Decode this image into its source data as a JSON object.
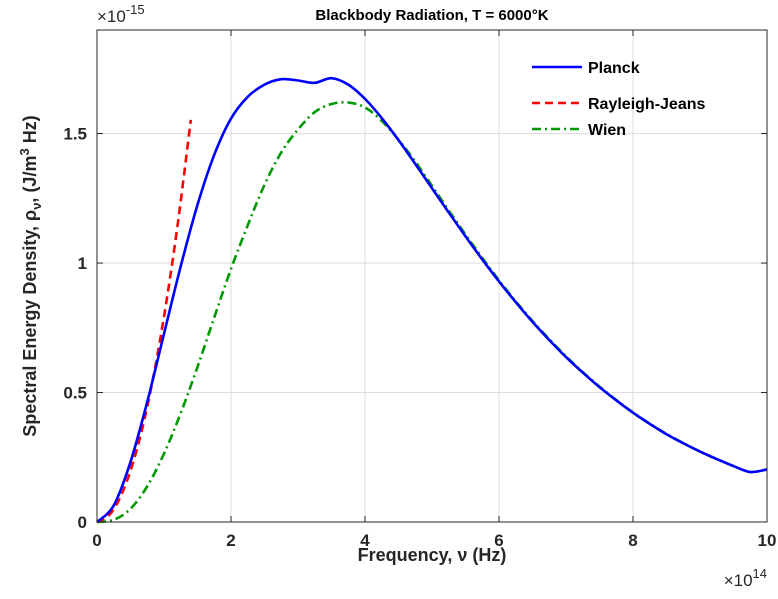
{
  "chart_data": {
    "type": "line",
    "title": "Blackbody Radiation, T = 6000°K",
    "xlabel": "Frequency, ν (Hz)",
    "ylabel": "Spectral Energy Density, ρ",
    "ylabel_sub": "ν",
    "ylabel_units_pre": ", (J/m",
    "ylabel_units_sup": "3",
    "ylabel_units_post": " Hz)",
    "x_multiplier": "×10",
    "x_multiplier_exp": "14",
    "y_multiplier": "×10",
    "y_multiplier_exp": "-15",
    "xlim": [
      0,
      10
    ],
    "ylim": [
      0,
      1.9
    ],
    "xticks": [
      0,
      2,
      4,
      6,
      8,
      10
    ],
    "xtick_labels": [
      "0",
      "2",
      "4",
      "6",
      "8",
      "10"
    ],
    "yticks": [
      0,
      0.5,
      1,
      1.5
    ],
    "ytick_labels": [
      "0",
      "0.5",
      "1",
      "1.5"
    ],
    "grid": true,
    "legend_position": "top-right",
    "series": [
      {
        "name": "Planck",
        "color": "#0000ff",
        "dash": "solid",
        "x": [
          0,
          0.25,
          0.5,
          0.75,
          1,
          1.25,
          1.5,
          1.75,
          2,
          2.25,
          2.5,
          2.75,
          3,
          3.25,
          3.5,
          3.75,
          4,
          4.25,
          4.5,
          4.75,
          5,
          5.25,
          5.5,
          5.75,
          6,
          6.25,
          6.5,
          6.75,
          7,
          7.25,
          7.5,
          7.75,
          8,
          8.25,
          8.5,
          8.75,
          9,
          9.25,
          9.5,
          9.75,
          10
        ],
        "y": [
          0,
          0.064,
          0.232,
          0.464,
          0.727,
          0.988,
          1.225,
          1.418,
          1.558,
          1.642,
          1.689,
          1.71,
          1.705,
          1.696,
          1.714,
          1.689,
          1.634,
          1.56,
          1.475,
          1.383,
          1.289,
          1.195,
          1.103,
          1.014,
          0.929,
          0.849,
          0.773,
          0.703,
          0.637,
          0.577,
          0.521,
          0.47,
          0.422,
          0.379,
          0.339,
          0.304,
          0.272,
          0.243,
          0.216,
          0.193,
          0.203
        ]
      },
      {
        "name": "Rayleigh-Jeans",
        "color": "#ff0000",
        "dash": "dashed",
        "x": [
          0,
          0.2,
          0.4,
          0.6,
          0.8,
          1.0,
          1.2,
          1.4
        ],
        "y": [
          0,
          0.032,
          0.127,
          0.285,
          0.507,
          0.793,
          1.141,
          1.553
        ]
      },
      {
        "name": "Wien",
        "color": "#009900",
        "dash": "dashdot",
        "x": [
          0,
          0.25,
          0.5,
          0.75,
          1,
          1.25,
          1.5,
          1.75,
          2,
          2.25,
          2.5,
          2.75,
          3,
          3.25,
          3.5,
          3.75,
          4,
          4.25,
          4.5,
          4.75,
          5,
          5.25,
          5.5,
          5.75,
          6,
          6.25,
          6.5,
          6.75,
          7,
          7.25,
          7.5,
          7.75,
          8,
          8.25,
          8.5,
          8.75,
          9,
          9.25,
          9.5,
          9.75,
          10
        ],
        "y": [
          0,
          0.0085,
          0.051,
          0.138,
          0.264,
          0.421,
          0.599,
          0.79,
          0.977,
          1.146,
          1.302,
          1.427,
          1.516,
          1.583,
          1.614,
          1.62,
          1.601,
          1.549,
          1.476,
          1.392,
          1.298,
          1.203,
          1.11,
          1.02,
          0.933,
          0.852,
          0.776,
          0.706,
          0.64,
          0.579,
          0.523,
          0.471,
          0.423,
          0.38,
          0.34,
          0.305,
          0.272,
          0.243,
          0.216,
          0.193,
          0.203
        ]
      }
    ]
  }
}
